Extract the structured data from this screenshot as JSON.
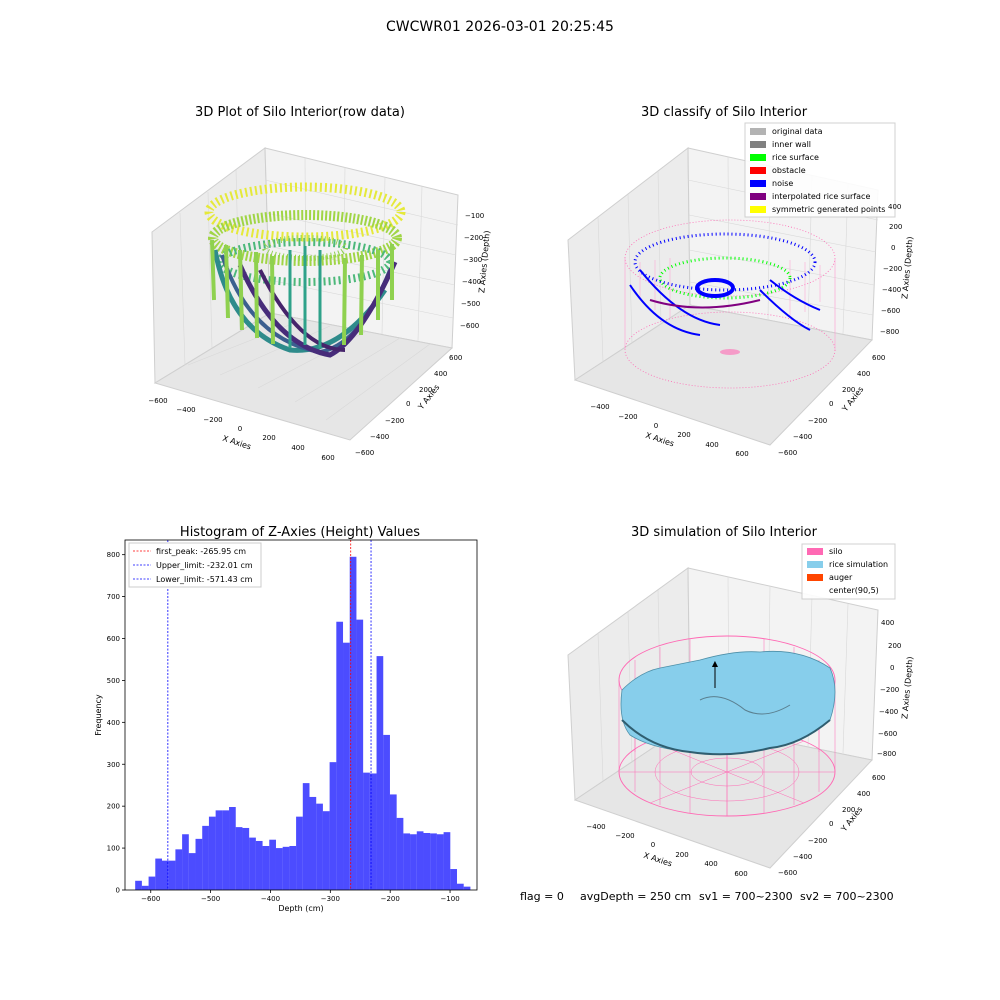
{
  "suptitle": "CWCWR01 2026-03-01 20:25:45",
  "panels": {
    "raw": {
      "title": "3D Plot of Silo Interior(row data)",
      "xlabel": "X Axies",
      "ylabel": "Y Axies",
      "zlabel": "Z Axies (Depth)",
      "xticks": [
        "−600",
        "−400",
        "−200",
        "0",
        "200",
        "400",
        "600"
      ],
      "yticks": [
        "600",
        "400",
        "200",
        "0",
        "−200",
        "−400",
        "−600"
      ],
      "zticks": [
        "−100",
        "−200",
        "−300",
        "−400",
        "−500",
        "−600"
      ]
    },
    "classify": {
      "title": "3D classify of Silo Interior",
      "xlabel": "X Axies",
      "ylabel": "Y Axies",
      "zlabel": "Z Axies (Depth)",
      "xticks": [
        "−400",
        "−200",
        "0",
        "200",
        "400",
        "600"
      ],
      "yticks": [
        "600",
        "400",
        "200",
        "0",
        "−200",
        "−400",
        "−600"
      ],
      "zticks": [
        "400",
        "200",
        "0",
        "−200",
        "−400",
        "−600",
        "−800"
      ],
      "legend": [
        {
          "label": "original data",
          "color": "#b3b3b3"
        },
        {
          "label": "inner wall",
          "color": "#808080"
        },
        {
          "label": "rice surface",
          "color": "#00ff00"
        },
        {
          "label": "obstacle",
          "color": "#ff0000"
        },
        {
          "label": "noise",
          "color": "#0000ff"
        },
        {
          "label": "interpolated rice surface",
          "color": "#800080"
        },
        {
          "label": "symmetric generated points",
          "color": "#ffff00"
        }
      ]
    },
    "simulation": {
      "title": "3D simulation of Silo Interior",
      "xlabel": "X Axies",
      "ylabel": "Y Axies",
      "zlabel": "Z Axies (Depth)",
      "xticks": [
        "−400",
        "−200",
        "0",
        "200",
        "400",
        "600"
      ],
      "yticks": [
        "600",
        "400",
        "200",
        "0",
        "−200",
        "−400",
        "−600"
      ],
      "zticks": [
        "400",
        "200",
        "0",
        "−200",
        "−400",
        "−600",
        "−800"
      ],
      "legend": [
        {
          "label": "silo",
          "color": "#ff69b4"
        },
        {
          "label": "rice simulation",
          "color": "#87ceeb"
        },
        {
          "label": "auger",
          "color": "#ff4500"
        },
        {
          "label": "center(90,5)",
          "color": ""
        }
      ]
    }
  },
  "chart_data": {
    "type": "bar",
    "title": "Histogram of Z-Axies (Height) Values",
    "xlabel": "Depth (cm)",
    "ylabel": "Frequency",
    "xlim": [
      -643,
      -55
    ],
    "ylim": [
      0,
      835
    ],
    "xticks": [
      -600,
      -500,
      -400,
      -300,
      -200,
      -100
    ],
    "xtick_labels": [
      "−600",
      "−500",
      "−400",
      "−300",
      "−200",
      "−100"
    ],
    "yticks": [
      0,
      100,
      200,
      300,
      400,
      500,
      600,
      700,
      800
    ],
    "bin_start": -626,
    "bin_width": 11.2,
    "values": [
      22,
      10,
      32,
      75,
      70,
      70,
      97,
      133,
      88,
      122,
      153,
      175,
      190,
      190,
      198,
      150,
      148,
      125,
      117,
      105,
      120,
      100,
      103,
      105,
      175,
      255,
      222,
      206,
      188,
      305,
      640,
      590,
      795,
      645,
      280,
      278,
      558,
      370,
      228,
      172,
      135,
      133,
      140,
      136,
      135,
      133,
      138,
      50,
      15,
      8
    ],
    "bar_color": "#0000ff",
    "lines": [
      {
        "label": "first_peak: -265.95 cm",
        "value": -265.95,
        "color": "#ff0000"
      },
      {
        "label": "Upper_limit: -232.01 cm",
        "value": -232.01,
        "color": "#0000ff"
      },
      {
        "label": "Lower_limit: -571.43 cm",
        "value": -571.43,
        "color": "#0000ff"
      }
    ]
  },
  "status": {
    "flag": "flag = 0",
    "avg": "avgDepth = 250 cm",
    "sv1": "sv1 = 700~2300",
    "sv2": "sv2 = 700~2300"
  }
}
